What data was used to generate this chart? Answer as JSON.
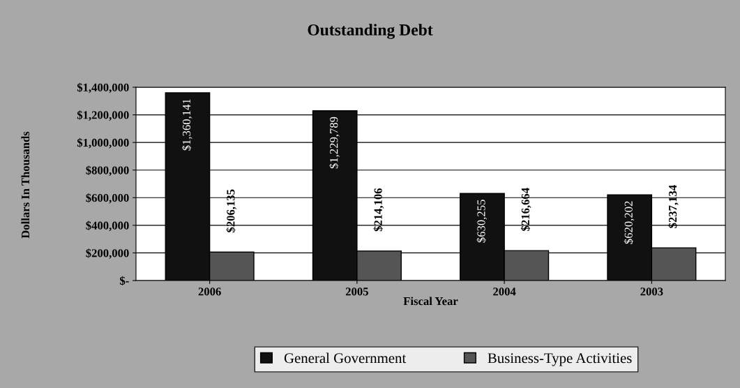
{
  "chart_data": {
    "type": "bar",
    "title": "Outstanding Debt",
    "xlabel": "Fiscal Year",
    "ylabel": "Dollars In Thousands",
    "categories": [
      "2006",
      "2005",
      "2004",
      "2003"
    ],
    "series": [
      {
        "name": "General Government",
        "color": "#111111",
        "values": [
          1360141,
          1229789,
          630255,
          620202
        ],
        "value_labels": [
          "$1,360,141",
          "$1,229,789",
          "$630,255",
          "$620,202"
        ]
      },
      {
        "name": "Business-Type Activities",
        "color": "#555555",
        "values": [
          206135,
          214106,
          216664,
          237134
        ],
        "value_labels": [
          "$206,135",
          "$214,106",
          "$216,664",
          "$237,134"
        ]
      }
    ],
    "ylim": [
      0,
      1400000
    ],
    "yticks": [
      {
        "value": 0,
        "label": "$-"
      },
      {
        "value": 200000,
        "label": "$200,000"
      },
      {
        "value": 400000,
        "label": "$400,000"
      },
      {
        "value": 600000,
        "label": "$600,000"
      },
      {
        "value": 800000,
        "label": "$800,000"
      },
      {
        "value": 1000000,
        "label": "$1,000,000"
      },
      {
        "value": 1200000,
        "label": "$1,200,000"
      },
      {
        "value": 1400000,
        "label": "$1,400,000"
      }
    ],
    "grid": "y",
    "legend": "bottom"
  }
}
